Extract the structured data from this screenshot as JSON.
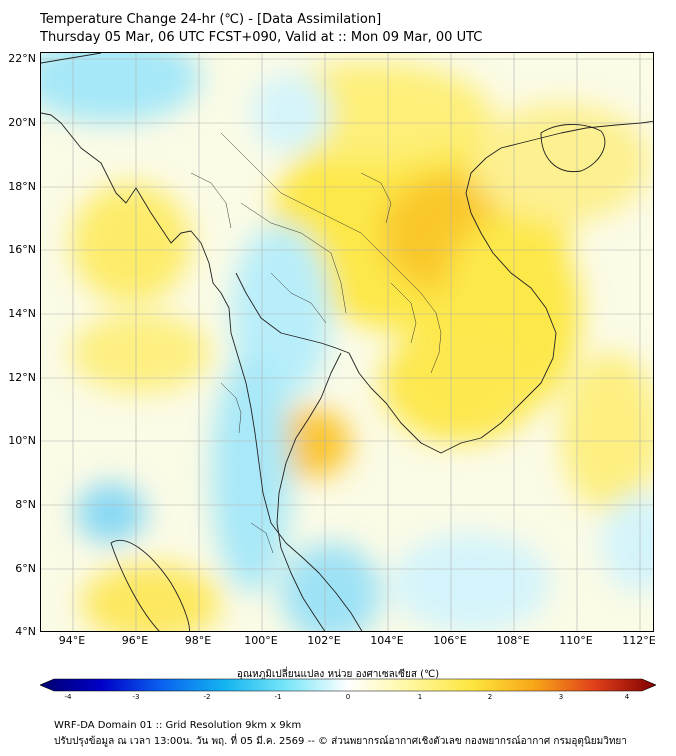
{
  "header": {
    "title": "Temperature Change 24-hr (℃) - [Data Assimilation]",
    "subtitle": "Thursday 05 Mar, 06 UTC FCST+090, Valid at :: Mon 09 Mar, 00 UTC"
  },
  "map": {
    "lat_range": [
      4,
      22
    ],
    "lon_range": [
      93,
      112.5
    ],
    "lat_ticks": [
      "22°N",
      "20°N",
      "18°N",
      "16°N",
      "14°N",
      "12°N",
      "10°N",
      "8°N",
      "6°N",
      "4°N"
    ],
    "lon_ticks": [
      "94°E",
      "96°E",
      "98°E",
      "100°E",
      "102°E",
      "104°E",
      "106°E",
      "108°E",
      "110°E",
      "112°E"
    ],
    "gridlines": true
  },
  "colorbar": {
    "title": "อุณหภูมิเปลี่ยนแปลง หน่วย องศาเซลเซียส (℃)",
    "range": [
      -4,
      4
    ],
    "ticks": [
      "-4",
      "-3",
      "-2",
      "-1",
      "0",
      "1",
      "2",
      "3",
      "4"
    ],
    "palette": [
      "#00006e",
      "#0000c8",
      "#0a64f0",
      "#14b4f0",
      "#78e6f8",
      "#ffffff",
      "#fff7a0",
      "#fde640",
      "#f8a818",
      "#e0401a",
      "#800000"
    ]
  },
  "footer": {
    "line1": "WRF-DA Domain 01 :: Grid Resolution 9km x 9km",
    "line2": "ปรับปรุงข้อมูล ณ เวลา 13:00น. วัน พฤ. ที่ 05 มี.ค. 2569 -- © ส่วนพยากรณ์อากาศเชิงตัวเลข กองพยากรณ์อากาศ กรมอุตุนิยมวิทยา"
  }
}
